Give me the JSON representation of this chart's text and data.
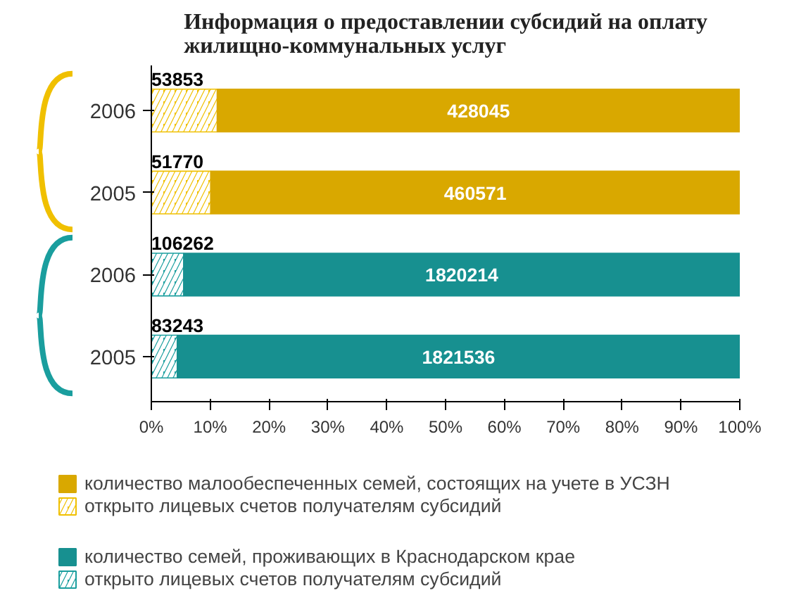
{
  "chart_data": {
    "type": "bar",
    "title": "Информация о предоставлении субсидий на оплату\nжилищно-коммунальных услуг",
    "orientation": "horizontal",
    "stacked": true,
    "categories": [
      "2006",
      "2005",
      "2006",
      "2005"
    ],
    "xlim": [
      0,
      100
    ],
    "xticks": [
      {
        "value": 0,
        "label": "0%"
      },
      {
        "value": 10,
        "label": "10%"
      },
      {
        "value": 20,
        "label": "20%"
      },
      {
        "value": 30,
        "label": "30%"
      },
      {
        "value": 40,
        "label": "40%"
      },
      {
        "value": 50,
        "label": "50%"
      },
      {
        "value": 60,
        "label": "60%"
      },
      {
        "value": 70,
        "label": "70%"
      },
      {
        "value": 80,
        "label": "80%"
      },
      {
        "value": 90,
        "label": "90%"
      },
      {
        "value": 100,
        "label": "100%"
      }
    ],
    "series": [
      {
        "name": "открыто лицевых счетов получателям субсидий",
        "color": "#f0c000",
        "values": [
          11.2,
          10.1,
          null,
          null
        ]
      },
      {
        "name": "количество малообеспеченных семей, состоящих на учете в УСЗН",
        "color": "#d9a800",
        "values": [
          88.8,
          89.9,
          null,
          null
        ]
      },
      {
        "name": "открыто лицевых счетов получателям субсидий",
        "color": "#1a9e9e",
        "values": [
          null,
          null,
          5.5,
          4.4
        ]
      },
      {
        "name": "количество семей, проживающих в Краснодарском крае",
        "color": "#179090",
        "values": [
          null,
          null,
          94.5,
          95.6
        ]
      }
    ],
    "annotations": [
      "53853",
      "51770",
      "428045",
      "460571",
      "106262",
      "83243",
      "1820214",
      "1821536"
    ],
    "legend": "bottom",
    "grid": false
  }
}
